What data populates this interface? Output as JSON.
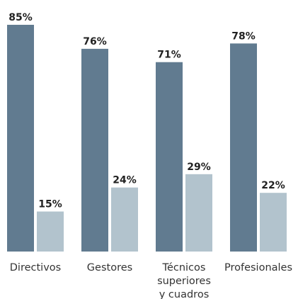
{
  "chart_data": {
    "type": "bar",
    "categories": [
      [
        "Directivos"
      ],
      [
        "Gestores"
      ],
      [
        "Técnicos",
        "superiores",
        "y cuadros"
      ],
      [
        "Profesionales"
      ]
    ],
    "series": [
      {
        "values": [
          85,
          76,
          71,
          78
        ],
        "labels": [
          "85%",
          "76%",
          "71%",
          "78%"
        ]
      },
      {
        "values": [
          15,
          24,
          29,
          22
        ],
        "labels": [
          "15%",
          "24%",
          "29%",
          "22%"
        ]
      }
    ],
    "ylim": [
      0,
      85
    ],
    "grid": false,
    "colors": [
      "#617b90",
      "#b2c3cd"
    ]
  }
}
